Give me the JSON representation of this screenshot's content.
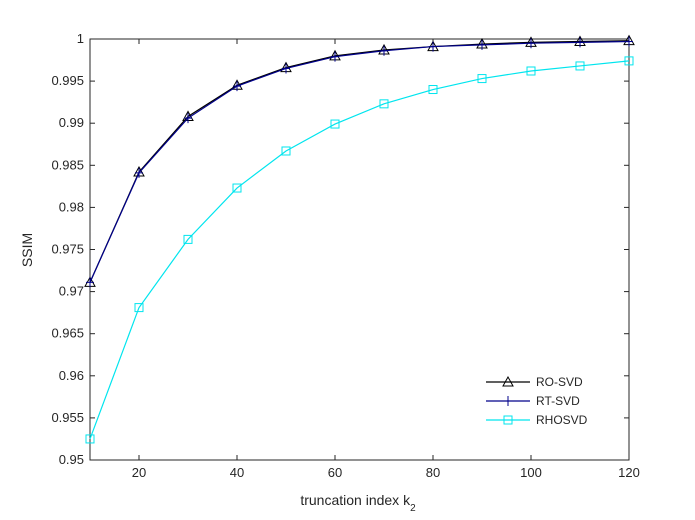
{
  "chart_data": {
    "type": "line",
    "xlabel": "truncation index k",
    "xlabel_subscript": "2",
    "ylabel": "SSIM",
    "xlim": [
      10,
      120
    ],
    "ylim": [
      0.95,
      1.0
    ],
    "x_ticks": [
      20,
      40,
      60,
      80,
      100,
      120
    ],
    "y_ticks": [
      0.95,
      0.955,
      0.96,
      0.965,
      0.97,
      0.975,
      0.98,
      0.985,
      0.99,
      0.995,
      1
    ],
    "y_tick_labels": [
      "0.95",
      "0.955",
      "0.96",
      "0.965",
      "0.97",
      "0.975",
      "0.98",
      "0.985",
      "0.99",
      "0.995",
      "1"
    ],
    "grid": false,
    "legend_position": "bottom-right",
    "x": [
      10,
      20,
      30,
      40,
      50,
      60,
      70,
      80,
      90,
      100,
      110,
      120
    ],
    "series": [
      {
        "name": "RO-SVD",
        "color": "#000000",
        "marker": "triangle",
        "values": [
          0.9711,
          0.9842,
          0.9908,
          0.9945,
          0.9966,
          0.998,
          0.9987,
          0.9991,
          0.9994,
          0.9996,
          0.9997,
          0.9998
        ]
      },
      {
        "name": "RT-SVD",
        "color": "#00008b",
        "marker": "plus",
        "values": [
          0.9711,
          0.9841,
          0.9906,
          0.9944,
          0.9965,
          0.9979,
          0.9986,
          0.9991,
          0.9993,
          0.9995,
          0.9996,
          0.9997
        ]
      },
      {
        "name": "RHOSVD",
        "color": "#00e5ee",
        "marker": "square",
        "values": [
          0.9525,
          0.9681,
          0.9762,
          0.9823,
          0.9867,
          0.9899,
          0.9923,
          0.994,
          0.9953,
          0.9962,
          0.9968,
          0.9974
        ]
      }
    ]
  }
}
